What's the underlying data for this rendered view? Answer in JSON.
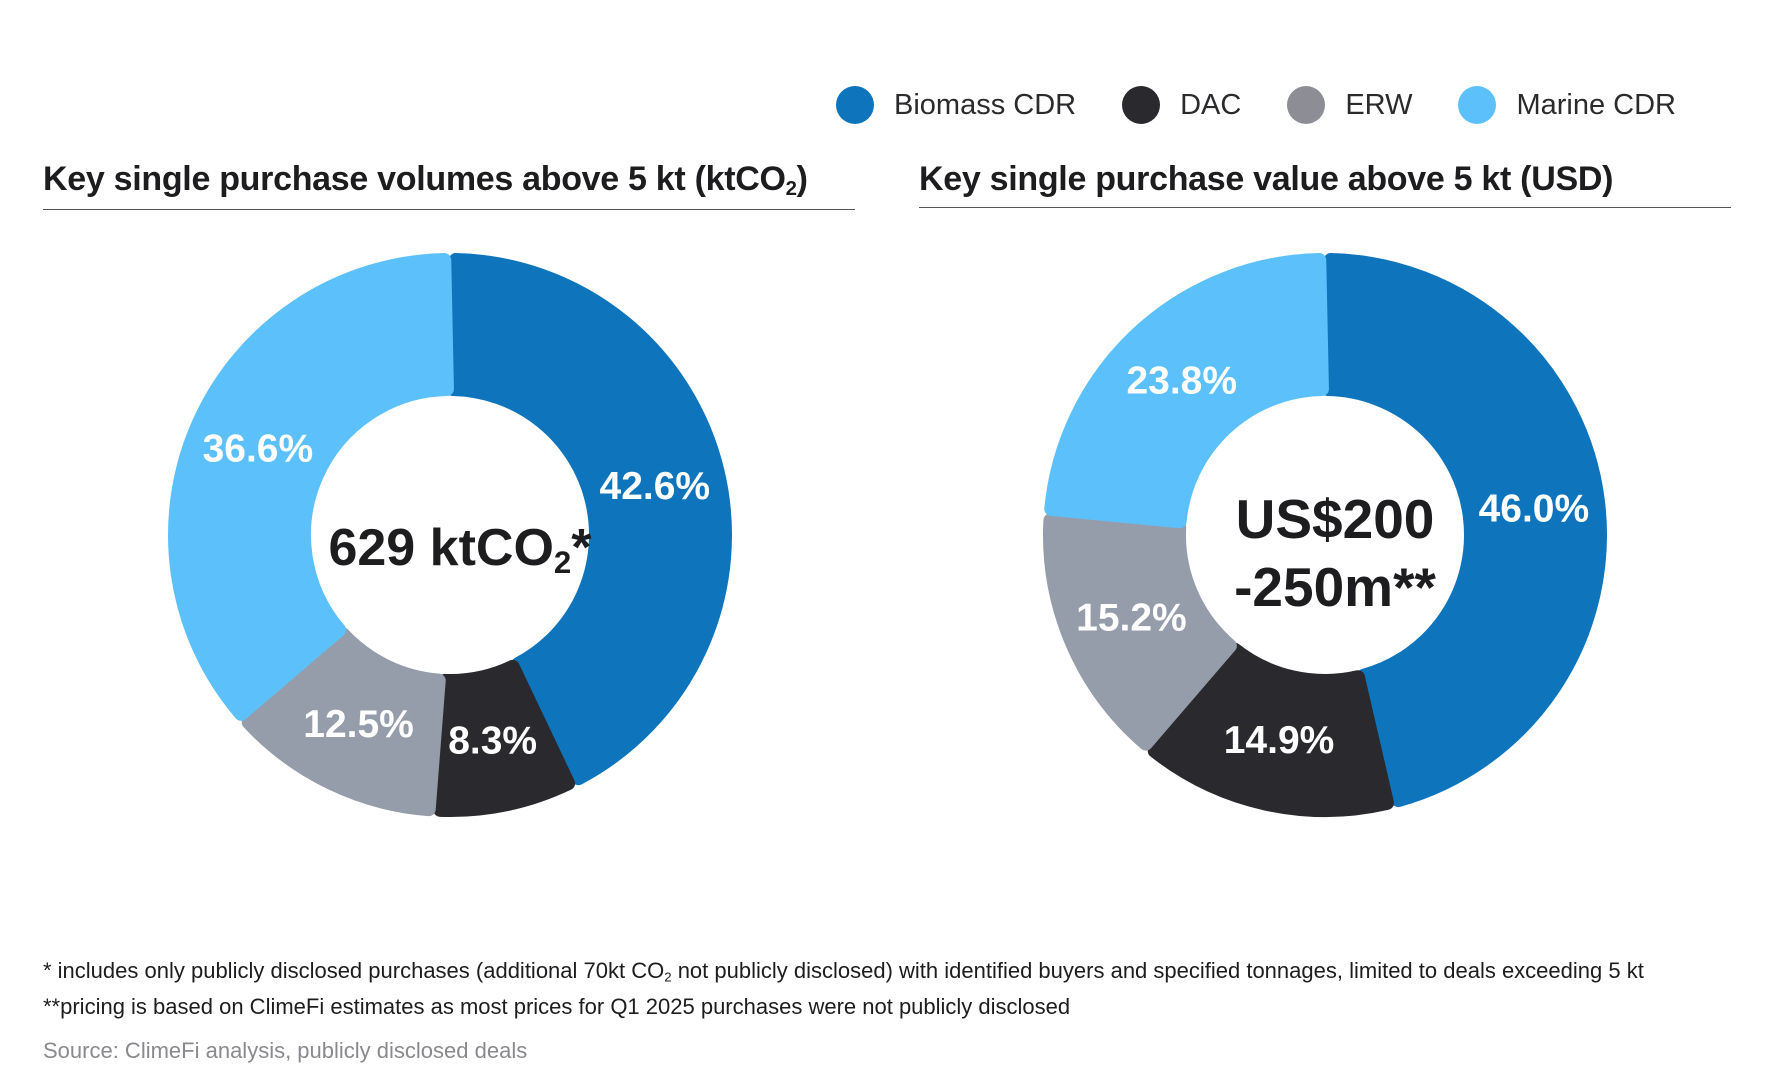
{
  "legend": [
    {
      "label": "Biomass CDR",
      "color": "#0e75bc"
    },
    {
      "label": "DAC",
      "color": "#2a2a2e"
    },
    {
      "label": "ERW",
      "color": "#8c8d95"
    },
    {
      "label": "Marine CDR",
      "color": "#5cc1fb"
    }
  ],
  "panels": {
    "left": {
      "title_main": "Key single purchase volumes above 5 kt (ktCO",
      "title_sub": "2",
      "title_end": ")",
      "center_main": "629 ktCO",
      "center_sub": "2",
      "center_end": "*"
    },
    "right": {
      "title": "Key single purchase value above 5 kt  (USD)",
      "center_line1": "US$200",
      "center_line2": "-250m**"
    }
  },
  "chart_data": [
    {
      "type": "pie",
      "title": "Key single purchase volumes above 5 kt (ktCO2)",
      "center_text": "629 ktCO2*",
      "slices": [
        {
          "name": "Biomass CDR",
          "value": 42.6,
          "label": "42.6%",
          "color": "#0e75bc"
        },
        {
          "name": "DAC",
          "value": 8.3,
          "label": "8.3%",
          "color": "#2a2a2e"
        },
        {
          "name": "ERW",
          "value": 12.5,
          "label": "12.5%",
          "color": "#959dab"
        },
        {
          "name": "Marine CDR",
          "value": 36.6,
          "label": "36.6%",
          "color": "#5cc1fb"
        }
      ]
    },
    {
      "type": "pie",
      "title": "Key single purchase value above 5 kt  (USD)",
      "center_text": "US$200 -250m**",
      "slices": [
        {
          "name": "Biomass CDR",
          "value": 46.0,
          "label": "46.0%",
          "color": "#0e75bc"
        },
        {
          "name": "DAC",
          "value": 14.9,
          "label": "14.9%",
          "color": "#2a2a2e"
        },
        {
          "name": "ERW",
          "value": 15.2,
          "label": "15.2%",
          "color": "#959dab"
        },
        {
          "name": "Marine CDR",
          "value": 23.8,
          "label": "23.8%",
          "color": "#5cc1fb"
        }
      ]
    }
  ],
  "footnotes": {
    "note1_part1": "* includes only publicly disclosed purchases (additional 70kt CO",
    "note1_sub": "2",
    "note1_part2": " not publicly disclosed) with identified buyers and specified tonnages, limited to deals exceeding 5 kt",
    "note2": "**pricing is based on ClimeFi estimates as most prices for Q1 2025 purchases were not publicly disclosed",
    "source": "Source: ClimeFi analysis, publicly disclosed deals"
  }
}
